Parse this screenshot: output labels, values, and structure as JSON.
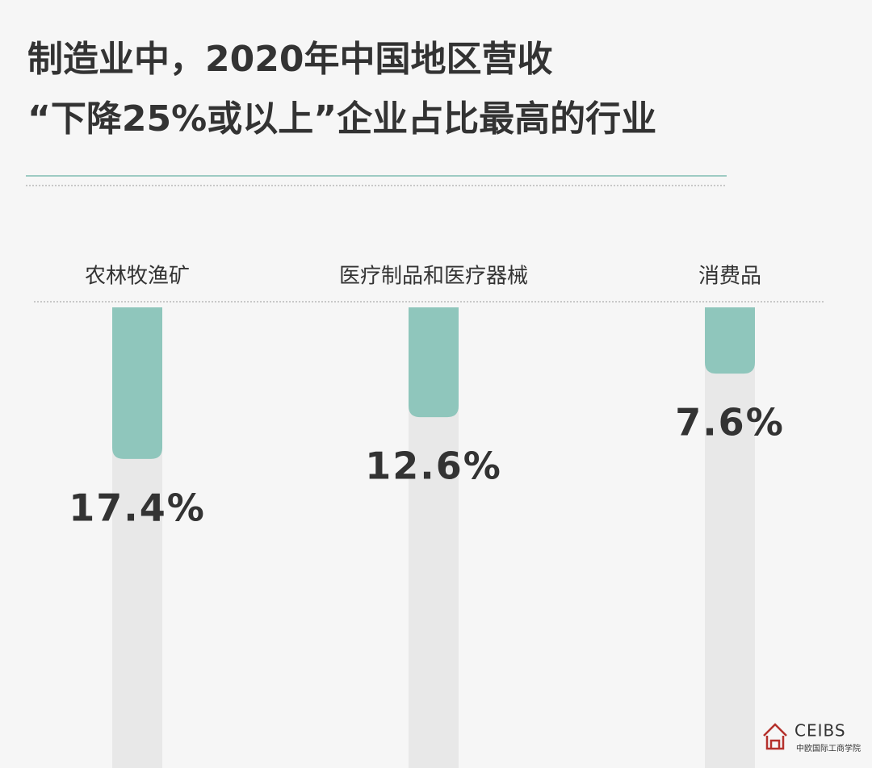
{
  "chart_data": {
    "type": "bar",
    "title": [
      "制造业中，2020年中国地区营收",
      "“下降25%或以上”企业占比最高的行业"
    ],
    "categories": [
      "农林牧渔矿",
      "医疗制品和医疗器械",
      "消费品"
    ],
    "values": [
      17.4,
      12.6,
      7.6
    ],
    "value_labels": [
      "17.4%",
      "12.6%",
      "7.6%"
    ],
    "color": "#8fc6bc"
  },
  "logo": {
    "name": "CEIBS",
    "subtitle": "中欧国际工商学院"
  }
}
